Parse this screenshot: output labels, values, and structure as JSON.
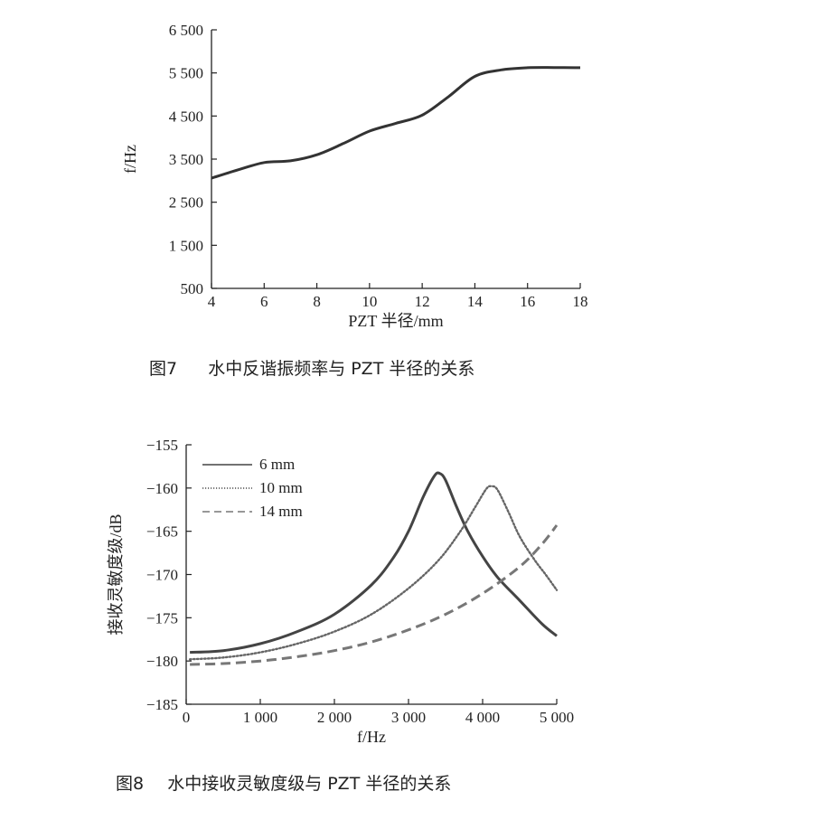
{
  "figures": [
    {
      "caption_num": "图7",
      "caption_text": "水中反谐振频率与 PZT 半径的关系"
    },
    {
      "caption_num": "图8",
      "caption_text": "水中接收灵敏度级与 PZT 半径的关系"
    }
  ],
  "chart_data": [
    {
      "type": "line",
      "xlabel": "PZT 半径/mm",
      "ylabel": "f/Hz",
      "xlim": [
        4,
        18
      ],
      "ylim": [
        500,
        6500
      ],
      "x_ticks": [
        4,
        6,
        8,
        10,
        12,
        14,
        16,
        18
      ],
      "x_tick_labels": [
        "4",
        "6",
        "8",
        "10",
        "12",
        "14",
        "16",
        "18"
      ],
      "y_ticks": [
        500,
        1500,
        2500,
        3500,
        4500,
        5500,
        6500
      ],
      "y_tick_labels": [
        "500",
        "1 500",
        "2 500",
        "3 500",
        "4 500",
        "5 500",
        "6 500"
      ],
      "grid": false,
      "series": [
        {
          "color": "#333333",
          "x": [
            4,
            5,
            6,
            7,
            8,
            9,
            10,
            11,
            12,
            13,
            14,
            15,
            16,
            17,
            18
          ],
          "y": [
            3060,
            3250,
            3420,
            3460,
            3600,
            3860,
            4150,
            4330,
            4520,
            4950,
            5420,
            5570,
            5620,
            5625,
            5620
          ]
        }
      ]
    },
    {
      "type": "line",
      "xlabel": "f/Hz",
      "ylabel": "接收灵敏度级/dB",
      "xlim": [
        0,
        5000
      ],
      "ylim": [
        -185,
        -155
      ],
      "x_ticks": [
        0,
        1000,
        2000,
        3000,
        4000,
        5000
      ],
      "x_tick_labels": [
        "0",
        "1 000",
        "2 000",
        "3 000",
        "4 000",
        "5 000"
      ],
      "y_ticks": [
        -185,
        -180,
        -175,
        -170,
        -165,
        -160,
        -155
      ],
      "y_tick_labels": [
        "−185",
        "−180",
        "−175",
        "−170",
        "−165",
        "−160",
        "−155"
      ],
      "grid": false,
      "legend_position": "top-left",
      "series": [
        {
          "name": "6 mm",
          "style": "solid",
          "color": "#444444",
          "x": [
            50,
            500,
            1000,
            1500,
            2000,
            2500,
            2800,
            3000,
            3200,
            3350,
            3420,
            3500,
            3650,
            3800,
            4000,
            4200,
            4500,
            4800,
            5000
          ],
          "y": [
            -179.0,
            -178.8,
            -178.0,
            -176.6,
            -174.6,
            -171.2,
            -168.0,
            -165.0,
            -161.0,
            -158.6,
            -158.3,
            -159.1,
            -162.2,
            -165.0,
            -167.9,
            -170.3,
            -173.0,
            -175.7,
            -177.1
          ]
        },
        {
          "name": "10 mm",
          "style": "dotted",
          "color": "#666666",
          "x": [
            50,
            500,
            1000,
            1500,
            2000,
            2500,
            3000,
            3400,
            3700,
            3900,
            4050,
            4120,
            4200,
            4350,
            4500,
            4700,
            4850,
            5000
          ],
          "y": [
            -179.8,
            -179.6,
            -179.0,
            -178.0,
            -176.6,
            -174.6,
            -171.6,
            -168.4,
            -165.0,
            -162.2,
            -160.1,
            -159.8,
            -160.2,
            -162.8,
            -165.6,
            -168.3,
            -170.0,
            -171.8
          ]
        },
        {
          "name": "14 mm",
          "style": "dashed",
          "color": "#777777",
          "x": [
            50,
            500,
            1000,
            1500,
            2000,
            2500,
            3000,
            3500,
            4000,
            4500,
            4800,
            5000
          ],
          "y": [
            -180.4,
            -180.3,
            -180.0,
            -179.5,
            -178.8,
            -177.8,
            -176.4,
            -174.6,
            -172.2,
            -169.1,
            -166.5,
            -164.3
          ]
        }
      ]
    }
  ]
}
